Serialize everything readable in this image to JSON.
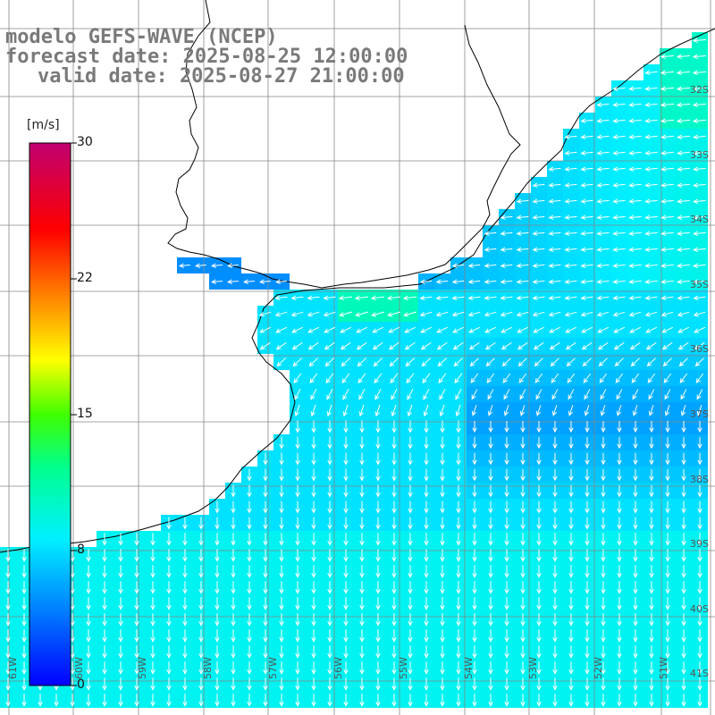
{
  "title": {
    "model": "modelo GEFS-WAVE (NCEP)",
    "forecast": "forecast date: 2025-08-25 12:00:00",
    "valid": "valid date: 2025-08-27 21:00:00"
  },
  "colorbar": {
    "unit": "[m/s]",
    "ticks": [
      "30",
      "22",
      "15",
      "8",
      "0"
    ],
    "colors": [
      "#0000ff",
      "#0090ff",
      "#00e8ff",
      "#00ff60",
      "#ffff00",
      "#ff7000",
      "#ff0000",
      "#c00070"
    ]
  },
  "lat_labels": [
    "32S",
    "33S",
    "34S",
    "35S",
    "36S",
    "37S",
    "38S",
    "39S",
    "40S",
    "41S"
  ],
  "lon_labels": [
    "61W",
    "60W",
    "59W",
    "58W",
    "57W",
    "56W",
    "55W",
    "54W",
    "53W",
    "52W",
    "51W"
  ],
  "colors": {
    "land": "#ffffff",
    "coast": "#000000",
    "grid": "#888888",
    "arrow": "#ffffff",
    "title_text": "#7a7a7a"
  }
}
